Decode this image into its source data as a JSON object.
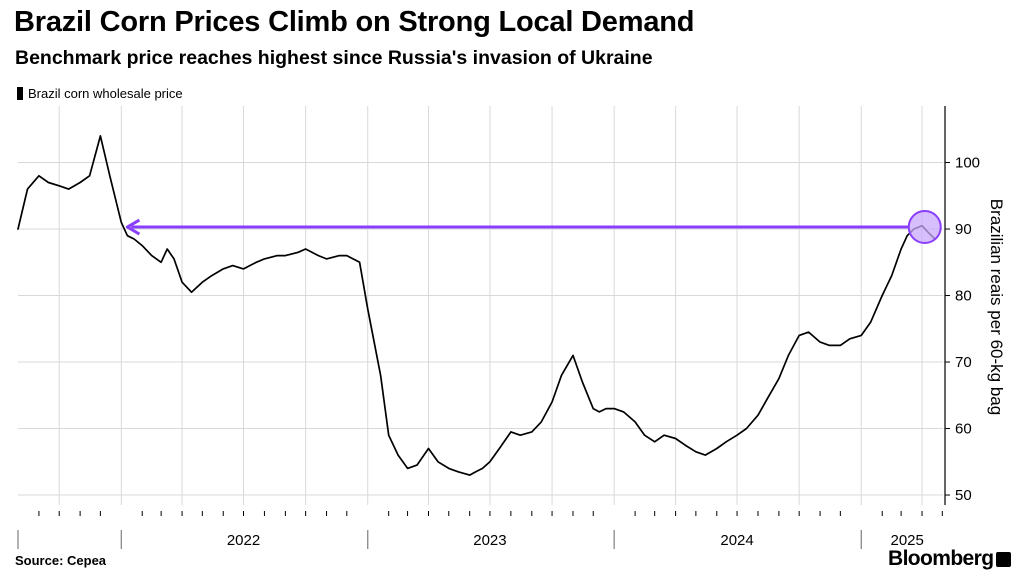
{
  "header": {
    "title": "Brazil Corn Prices Climb on Strong Local Demand",
    "subtitle": "Benchmark price reaches highest since Russia's invasion of Ukraine"
  },
  "footer": {
    "source": "Source: Cepea",
    "brand": "Bloomberg"
  },
  "colors": {
    "line": "#000000",
    "annotation": "#8a3ffc",
    "annotation_fill": "#c9a8fb",
    "grid": "#d9d9d9"
  },
  "chart_data": {
    "type": "line",
    "title": "Brazil Corn Prices Climb on Strong Local Demand",
    "subtitle": "Benchmark price reaches highest since Russia's invasion of Ukraine",
    "xlabel": "",
    "ylabel": "Brazilian reais per 60-kg bag",
    "ylim": [
      48.5,
      108.5
    ],
    "xlim": [
      "2021-08-01",
      "2025-05-05"
    ],
    "grid": true,
    "legend_position": "top-left",
    "y_axis_position": "right",
    "y_ticks": [
      50,
      60,
      70,
      80,
      90,
      100
    ],
    "x_tick_labels": [
      {
        "label": "2022",
        "date": "2022-07-01"
      },
      {
        "label": "2023",
        "date": "2023-07-01"
      },
      {
        "label": "2024",
        "date": "2024-07-01"
      },
      {
        "label": "2025",
        "date": "2025-03-10"
      }
    ],
    "series": [
      {
        "name": "Brazil corn wholesale price",
        "x": [
          "2021-08-01",
          "2021-08-15",
          "2021-09-01",
          "2021-09-15",
          "2021-10-01",
          "2021-10-15",
          "2021-11-01",
          "2021-11-15",
          "2021-12-01",
          "2021-12-15",
          "2022-01-01",
          "2022-01-10",
          "2022-01-20",
          "2022-02-01",
          "2022-02-15",
          "2022-03-01",
          "2022-03-10",
          "2022-03-20",
          "2022-04-01",
          "2022-04-15",
          "2022-05-01",
          "2022-05-15",
          "2022-06-01",
          "2022-06-15",
          "2022-07-01",
          "2022-07-20",
          "2022-08-01",
          "2022-08-20",
          "2022-09-01",
          "2022-09-20",
          "2022-10-01",
          "2022-10-20",
          "2022-11-01",
          "2022-11-20",
          "2022-12-01",
          "2022-12-20",
          "2023-01-01",
          "2023-01-20",
          "2023-02-01",
          "2023-02-15",
          "2023-03-01",
          "2023-03-15",
          "2023-04-01",
          "2023-04-15",
          "2023-05-01",
          "2023-05-15",
          "2023-06-01",
          "2023-06-10",
          "2023-06-20",
          "2023-07-01",
          "2023-07-15",
          "2023-08-01",
          "2023-08-15",
          "2023-09-01",
          "2023-09-15",
          "2023-10-01",
          "2023-10-15",
          "2023-11-01",
          "2023-11-15",
          "2023-12-01",
          "2023-12-10",
          "2023-12-20",
          "2024-01-01",
          "2024-01-15",
          "2024-02-01",
          "2024-02-15",
          "2024-03-01",
          "2024-03-15",
          "2024-04-01",
          "2024-04-15",
          "2024-05-01",
          "2024-05-15",
          "2024-06-01",
          "2024-06-15",
          "2024-07-01",
          "2024-07-15",
          "2024-08-01",
          "2024-08-15",
          "2024-09-01",
          "2024-09-15",
          "2024-10-01",
          "2024-10-15",
          "2024-11-01",
          "2024-11-15",
          "2024-12-01",
          "2024-12-15",
          "2025-01-01",
          "2025-01-15",
          "2025-02-01",
          "2025-02-15",
          "2025-03-01",
          "2025-03-10",
          "2025-03-20",
          "2025-04-01",
          "2025-04-10",
          "2025-04-20"
        ],
        "values": [
          90,
          96,
          98,
          97,
          96.5,
          96,
          97,
          98,
          104,
          98,
          91,
          89,
          88.5,
          87.5,
          86,
          85,
          87,
          85.5,
          82,
          80.5,
          82,
          83,
          84,
          84.5,
          84,
          85,
          85.5,
          86,
          86,
          86.5,
          87,
          86,
          85.5,
          86,
          86,
          85,
          78,
          68,
          59,
          56,
          54,
          54.5,
          57,
          55,
          54,
          53.5,
          53,
          53.5,
          54,
          55,
          57,
          59.5,
          59,
          59.5,
          61,
          64,
          68,
          71,
          67,
          63,
          62.5,
          63,
          63,
          62.5,
          61,
          59,
          58,
          59,
          58.5,
          57.5,
          56.5,
          56,
          57,
          58,
          59,
          60,
          62,
          64.5,
          67.5,
          71,
          74,
          74.5,
          73,
          72.5,
          72.5,
          73.5,
          74,
          76,
          80,
          83,
          87,
          89,
          90,
          90.5,
          89.5,
          88.5
        ]
      }
    ],
    "annotation": {
      "type": "arrow",
      "value": 90.3,
      "from_date": "2025-04-05",
      "to_date": "2022-01-10"
    }
  }
}
